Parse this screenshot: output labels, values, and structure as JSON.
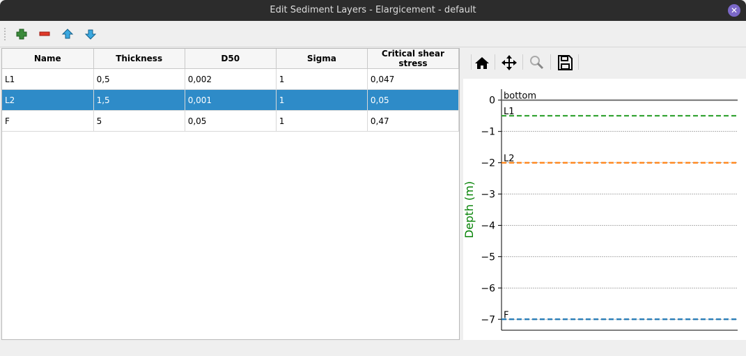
{
  "window": {
    "title": "Edit Sediment Layers - Elargicement - default",
    "close_icon": "close-icon"
  },
  "toolbar": {
    "icons": [
      "add-layer-icon",
      "remove-layer-icon",
      "move-up-icon",
      "move-down-icon"
    ]
  },
  "table": {
    "columns": [
      "Name",
      "Thickness",
      "D50",
      "Sigma",
      "Critical shear stress"
    ],
    "rows": [
      [
        "L1",
        "0,5",
        "0,002",
        "1",
        "0,047"
      ],
      [
        "L2",
        "1,5",
        "0,001",
        "1",
        "0,05"
      ],
      [
        "F",
        "5",
        "0,05",
        "1",
        "0,47"
      ]
    ],
    "selected_row": 1
  },
  "plot_toolbar": {
    "icons": [
      "home-icon",
      "pan-icon",
      "zoom-icon",
      "save-icon"
    ]
  },
  "chart_data": {
    "type": "line",
    "ylabel": "Depth (m)",
    "ylim": [
      -7.35,
      0.35
    ],
    "yticks": [
      0,
      -1,
      -2,
      -3,
      -4,
      -5,
      -6,
      -7
    ],
    "ytick_labels": [
      "0",
      "−1",
      "−2",
      "−3",
      "−4",
      "−5",
      "−6",
      "−7"
    ],
    "grid": true,
    "lines": [
      {
        "label": "bottom",
        "depth": 0,
        "color": "#808080",
        "style": "solid"
      },
      {
        "label": "L1",
        "depth": -0.5,
        "color": "#2ca02c",
        "style": "dashed"
      },
      {
        "label": "L2",
        "depth": -2,
        "color": "#ff7f0e",
        "style": "dashed"
      },
      {
        "label": "F",
        "depth": -7,
        "color": "#1f77b4",
        "style": "dashed"
      }
    ]
  }
}
